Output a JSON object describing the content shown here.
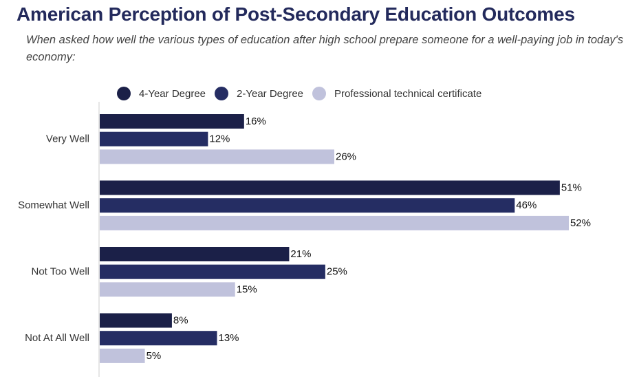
{
  "header": {
    "title": "American Perception of Post-Secondary Education Outcomes",
    "subtitle": "When asked how well the various types of education after high school prepare someone for a well-paying job in today's economy:"
  },
  "legend": {
    "items": [
      {
        "label": "4-Year Degree",
        "color": "#1b2048"
      },
      {
        "label": "2-Year Degree",
        "color": "#252d63"
      },
      {
        "label": "Professional technical certificate",
        "color": "#c0c2dc"
      }
    ]
  },
  "colors": {
    "title": "#232a5c",
    "axis": "#cccccc"
  },
  "chart_data": {
    "type": "bar",
    "orientation": "horizontal",
    "title": "American Perception of Post-Secondary Education Outcomes",
    "subtitle": "When asked how well the various types of education after high school prepare someone for a well-paying job in today's economy:",
    "categories": [
      "Very Well",
      "Somewhat Well",
      "Not Too Well",
      "Not At All Well"
    ],
    "series": [
      {
        "name": "4-Year Degree",
        "color": "#1b2048",
        "values": [
          16,
          51,
          21,
          8
        ]
      },
      {
        "name": "2-Year Degree",
        "color": "#252d63",
        "values": [
          12,
          46,
          25,
          13
        ]
      },
      {
        "name": "Professional technical certificate",
        "color": "#c0c2dc",
        "values": [
          26,
          52,
          15,
          5
        ]
      }
    ],
    "value_suffix": "%",
    "xlim": [
      0,
      52
    ],
    "grid": false,
    "legend_position": "top"
  }
}
